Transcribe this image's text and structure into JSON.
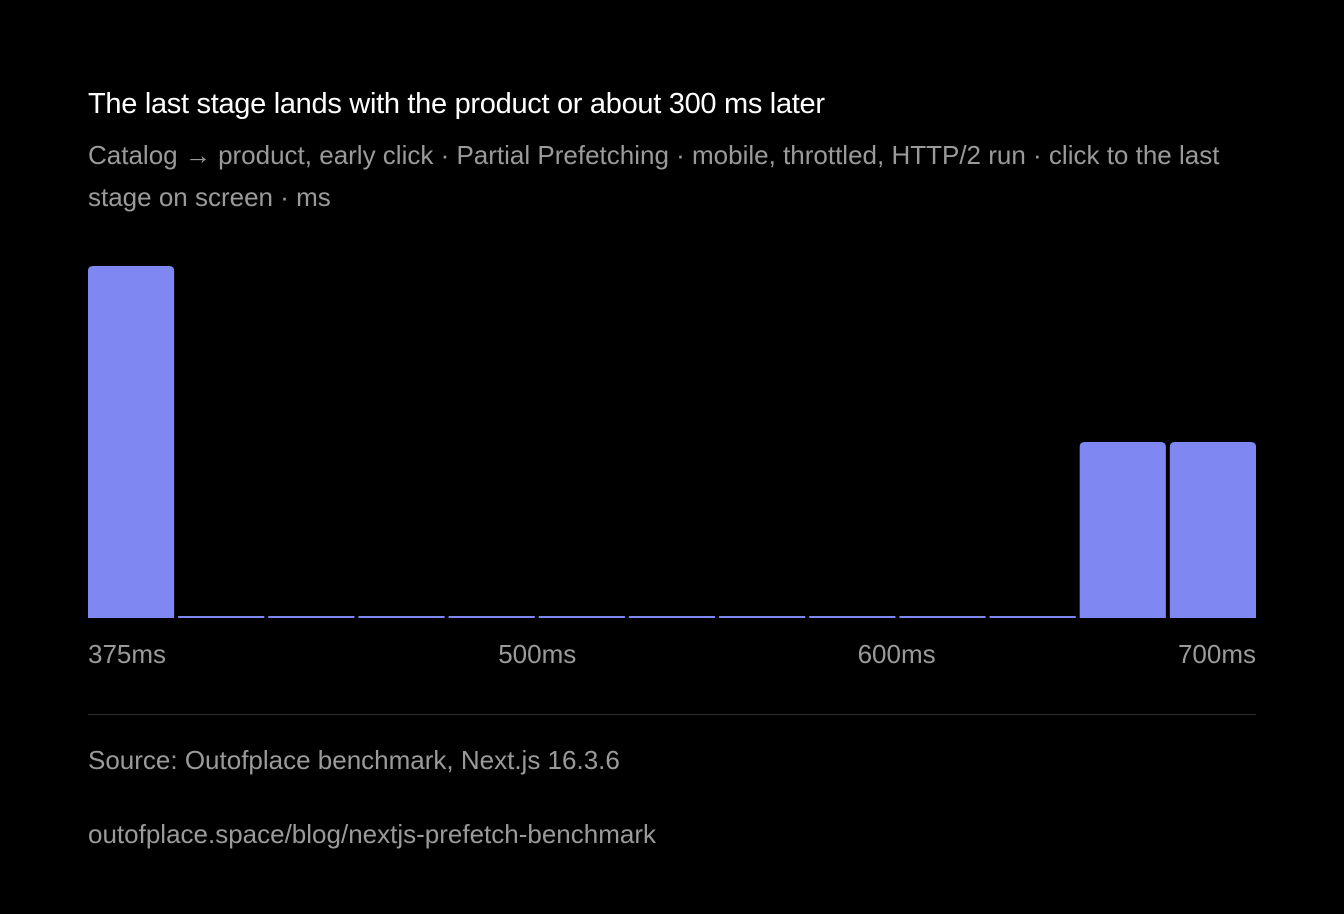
{
  "chart_data": {
    "type": "bar",
    "title": "The last stage lands with the product or about 300 ms later",
    "subtitle": "Catalog → product, early click · Partial Prefetching · mobile, throttled, HTTP/2 run · click to the last stage on screen · ms",
    "categories": [
      "375",
      "400",
      "425",
      "450",
      "475",
      "500",
      "525",
      "550",
      "575",
      "600",
      "625",
      "650",
      "675"
    ],
    "values": [
      2,
      0,
      0,
      0,
      0,
      0,
      0,
      0,
      0,
      0,
      0,
      1,
      1
    ],
    "x_tick_labels": [
      {
        "value": 375,
        "label": "375ms"
      },
      {
        "value": 500,
        "label": "500ms"
      },
      {
        "value": 600,
        "label": "600ms"
      },
      {
        "value": 700,
        "label": "700ms"
      }
    ],
    "xlim": [
      375,
      700
    ],
    "ylim": [
      0,
      2
    ],
    "xlabel": "",
    "ylabel": "",
    "grid": false,
    "bar_color": "#7f88f2"
  },
  "footer": {
    "source": "Source: Outofplace benchmark, Next.js 16.3.6",
    "url": "outofplace.space/blog/nextjs-prefetch-benchmark"
  }
}
